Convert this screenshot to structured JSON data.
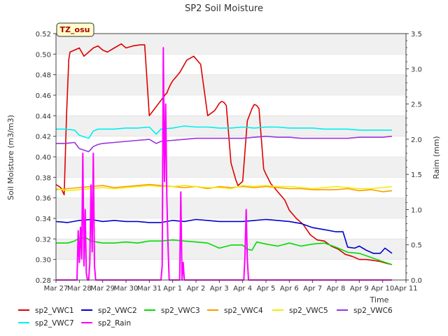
{
  "chart_data": {
    "type": "line",
    "title": "SP2 Soil Moisture",
    "xlabel": "Time",
    "ylabel": "Soil Moisture (m3/m3)",
    "y2label": "Raim (mm)",
    "site_label": "TZ_osu",
    "x_ticks": [
      "Mar 27",
      "Mar 28",
      "Mar 29",
      "Mar 30",
      "Mar 31",
      "Apr 1",
      "Apr 2",
      "Apr 3",
      "Apr 4",
      "Apr 5",
      "Apr 6",
      "Apr 7",
      "Apr 8",
      "Apr 9",
      "Apr 10",
      "Apr 11"
    ],
    "xlim": [
      0,
      15
    ],
    "ylim": [
      0.28,
      0.52
    ],
    "y_ticks": [
      "0.28",
      "0.30",
      "0.32",
      "0.34",
      "0.36",
      "0.38",
      "0.40",
      "0.42",
      "0.44",
      "0.46",
      "0.48",
      "0.50",
      "0.52"
    ],
    "y2lim": [
      0,
      3.5
    ],
    "y2_ticks": [
      "0.0",
      "0.5",
      "1.0",
      "1.5",
      "2.0",
      "2.5",
      "3.0",
      "3.5"
    ],
    "grid": "horizontal bands",
    "legend_position": "bottom",
    "series": [
      {
        "name": "sp2_VWC1",
        "color": "#dd0000",
        "axis": "left",
        "x": [
          0.0,
          0.2,
          0.35,
          0.45,
          0.55,
          0.6,
          0.7,
          0.8,
          1.0,
          1.2,
          1.4,
          1.6,
          1.8,
          2.0,
          2.2,
          2.5,
          2.8,
          3.0,
          3.3,
          3.6,
          3.8,
          4.0,
          4.2,
          4.5,
          4.7,
          4.75,
          4.8,
          4.9,
          5.0,
          5.3,
          5.6,
          5.9,
          6.2,
          6.5,
          6.8,
          7.0,
          7.1,
          7.2,
          7.3,
          7.5,
          7.7,
          7.8,
          7.9,
          8.0,
          8.2,
          8.4,
          8.5,
          8.6,
          8.7,
          8.9,
          9.0,
          9.2,
          9.5,
          9.8,
          10.0,
          10.3,
          10.6,
          10.9,
          11.2,
          11.5,
          11.8,
          12.1,
          12.4,
          12.7,
          13.0,
          13.3,
          13.6,
          13.9,
          14.2,
          14.4
        ],
        "y": [
          0.373,
          0.37,
          0.363,
          0.44,
          0.495,
          0.502,
          0.503,
          0.504,
          0.506,
          0.498,
          0.502,
          0.506,
          0.508,
          0.504,
          0.502,
          0.506,
          0.51,
          0.506,
          0.508,
          0.509,
          0.509,
          0.44,
          0.446,
          0.455,
          0.461,
          0.462,
          0.465,
          0.47,
          0.474,
          0.482,
          0.494,
          0.498,
          0.49,
          0.44,
          0.445,
          0.452,
          0.454,
          0.453,
          0.45,
          0.394,
          0.378,
          0.372,
          0.374,
          0.376,
          0.435,
          0.447,
          0.451,
          0.45,
          0.447,
          0.388,
          0.383,
          0.374,
          0.366,
          0.358,
          0.348,
          0.34,
          0.334,
          0.324,
          0.319,
          0.318,
          0.313,
          0.31,
          0.305,
          0.303,
          0.3,
          0.3,
          0.299,
          0.298,
          0.296,
          0.295
        ]
      },
      {
        "name": "sp2_VWC2",
        "color": "#0000cc",
        "axis": "left",
        "x": [
          0.0,
          0.5,
          1.0,
          1.5,
          2.0,
          2.5,
          3.0,
          3.5,
          4.0,
          4.5,
          5.0,
          5.5,
          6.0,
          6.5,
          7.0,
          7.5,
          8.0,
          8.5,
          9.0,
          9.5,
          10.0,
          10.5,
          11.0,
          11.5,
          12.0,
          12.3,
          12.5,
          12.8,
          13.0,
          13.3,
          13.6,
          13.9,
          14.1,
          14.4
        ],
        "y": [
          0.337,
          0.336,
          0.338,
          0.339,
          0.337,
          0.338,
          0.337,
          0.337,
          0.336,
          0.336,
          0.338,
          0.337,
          0.339,
          0.338,
          0.337,
          0.337,
          0.337,
          0.338,
          0.339,
          0.338,
          0.337,
          0.335,
          0.331,
          0.329,
          0.327,
          0.327,
          0.312,
          0.311,
          0.313,
          0.309,
          0.306,
          0.306,
          0.311,
          0.306
        ]
      },
      {
        "name": "sp2_VWC3",
        "color": "#00dd00",
        "axis": "left",
        "x": [
          0.0,
          0.5,
          0.8,
          1.0,
          1.3,
          1.5,
          2.0,
          2.5,
          3.0,
          3.5,
          4.0,
          4.5,
          5.0,
          5.5,
          6.0,
          6.5,
          7.0,
          7.5,
          8.0,
          8.2,
          8.4,
          8.6,
          9.0,
          9.5,
          10.0,
          10.5,
          11.0,
          11.5,
          12.0,
          12.5,
          13.0,
          13.5,
          14.0,
          14.4
        ],
        "y": [
          0.316,
          0.316,
          0.318,
          0.321,
          0.321,
          0.318,
          0.316,
          0.316,
          0.317,
          0.316,
          0.318,
          0.318,
          0.319,
          0.318,
          0.317,
          0.316,
          0.311,
          0.314,
          0.314,
          0.31,
          0.309,
          0.317,
          0.315,
          0.313,
          0.316,
          0.313,
          0.315,
          0.316,
          0.312,
          0.307,
          0.306,
          0.302,
          0.298,
          0.295
        ]
      },
      {
        "name": "sp2_VWC4",
        "color": "#ff9900",
        "axis": "left",
        "x": [
          0.0,
          0.5,
          1.0,
          1.5,
          2.0,
          2.5,
          3.0,
          3.5,
          4.0,
          4.5,
          5.0,
          5.5,
          6.0,
          6.5,
          7.0,
          7.5,
          8.0,
          8.5,
          9.0,
          9.5,
          10.0,
          10.5,
          11.0,
          11.5,
          12.0,
          12.5,
          13.0,
          13.5,
          14.0,
          14.4
        ],
        "y": [
          0.368,
          0.369,
          0.37,
          0.371,
          0.372,
          0.37,
          0.371,
          0.372,
          0.373,
          0.372,
          0.371,
          0.37,
          0.371,
          0.369,
          0.371,
          0.37,
          0.371,
          0.37,
          0.371,
          0.37,
          0.369,
          0.369,
          0.368,
          0.368,
          0.368,
          0.369,
          0.367,
          0.368,
          0.366,
          0.367
        ]
      },
      {
        "name": "sp2_VWC5",
        "color": "#eeee00",
        "axis": "left",
        "x": [
          0.0,
          0.5,
          1.0,
          1.5,
          2.0,
          2.5,
          3.0,
          3.5,
          4.0,
          4.5,
          5.0,
          5.5,
          6.0,
          6.5,
          7.0,
          7.5,
          8.0,
          8.5,
          9.0,
          9.5,
          10.0,
          10.5,
          11.0,
          11.5,
          12.0,
          12.5,
          13.0,
          13.5,
          14.0,
          14.4
        ],
        "y": [
          0.369,
          0.367,
          0.368,
          0.369,
          0.37,
          0.369,
          0.37,
          0.371,
          0.372,
          0.371,
          0.371,
          0.372,
          0.371,
          0.37,
          0.37,
          0.369,
          0.372,
          0.371,
          0.372,
          0.371,
          0.371,
          0.37,
          0.369,
          0.37,
          0.371,
          0.37,
          0.369,
          0.369,
          0.37,
          0.371
        ]
      },
      {
        "name": "sp2_VWC6",
        "color": "#9933dd",
        "axis": "left",
        "x": [
          0.0,
          0.4,
          0.8,
          1.0,
          1.4,
          1.6,
          1.8,
          2.0,
          2.5,
          3.0,
          3.5,
          4.0,
          4.3,
          4.5,
          5.0,
          5.5,
          6.0,
          6.5,
          7.0,
          7.5,
          8.0,
          8.5,
          9.0,
          9.5,
          10.0,
          10.5,
          11.0,
          11.5,
          12.0,
          12.5,
          13.0,
          13.5,
          14.0,
          14.4
        ],
        "y": [
          0.413,
          0.413,
          0.414,
          0.408,
          0.405,
          0.41,
          0.412,
          0.413,
          0.414,
          0.415,
          0.416,
          0.417,
          0.413,
          0.415,
          0.416,
          0.417,
          0.418,
          0.418,
          0.418,
          0.418,
          0.418,
          0.419,
          0.42,
          0.419,
          0.419,
          0.418,
          0.418,
          0.418,
          0.418,
          0.418,
          0.419,
          0.419,
          0.419,
          0.42
        ]
      },
      {
        "name": "sp2_VWC7",
        "color": "#00eeee",
        "axis": "left",
        "x": [
          0.0,
          0.4,
          0.8,
          1.0,
          1.4,
          1.6,
          1.8,
          2.0,
          2.5,
          3.0,
          3.5,
          4.0,
          4.3,
          4.5,
          5.0,
          5.5,
          6.0,
          6.5,
          7.0,
          7.5,
          8.0,
          8.5,
          9.0,
          9.5,
          10.0,
          10.5,
          11.0,
          11.5,
          12.0,
          12.5,
          13.0,
          13.5,
          14.0,
          14.4
        ],
        "y": [
          0.427,
          0.427,
          0.426,
          0.421,
          0.418,
          0.425,
          0.427,
          0.427,
          0.427,
          0.428,
          0.428,
          0.429,
          0.422,
          0.427,
          0.428,
          0.43,
          0.429,
          0.429,
          0.428,
          0.428,
          0.429,
          0.428,
          0.429,
          0.429,
          0.428,
          0.428,
          0.428,
          0.427,
          0.427,
          0.427,
          0.426,
          0.426,
          0.426,
          0.426
        ]
      },
      {
        "name": "sp2_Rain",
        "color": "#ff00ff",
        "axis": "right",
        "x": [
          0.0,
          0.9,
          0.95,
          1.0,
          1.05,
          1.1,
          1.15,
          1.2,
          1.25,
          1.3,
          1.35,
          1.4,
          1.45,
          1.5,
          1.55,
          1.6,
          1.65,
          1.7,
          1.75,
          1.8,
          1.85,
          1.9,
          1.95,
          2.0,
          4.5,
          4.55,
          4.6,
          4.65,
          4.7,
          4.75,
          4.8,
          4.85,
          4.9,
          4.95,
          5.0,
          5.3,
          5.35,
          5.4,
          5.45,
          5.5,
          8.0,
          8.05,
          8.1,
          8.15,
          8.2,
          8.25,
          8.3,
          14.4
        ],
        "y": [
          0.0,
          0.0,
          0.7,
          0.25,
          0.75,
          0.3,
          1.8,
          0.2,
          1.0,
          0.1,
          0.0,
          0.0,
          0.25,
          1.35,
          0.4,
          1.8,
          0.2,
          0.0,
          0.0,
          0.0,
          0.0,
          0.0,
          0.0,
          0.0,
          0.0,
          0.2,
          3.3,
          1.4,
          2.5,
          1.2,
          0.5,
          0.0,
          0.0,
          0.0,
          0.0,
          0.0,
          1.25,
          0.0,
          0.25,
          0.0,
          0.0,
          0.0,
          0.35,
          1.0,
          0.3,
          0.0,
          0.0,
          0.0
        ]
      }
    ]
  }
}
